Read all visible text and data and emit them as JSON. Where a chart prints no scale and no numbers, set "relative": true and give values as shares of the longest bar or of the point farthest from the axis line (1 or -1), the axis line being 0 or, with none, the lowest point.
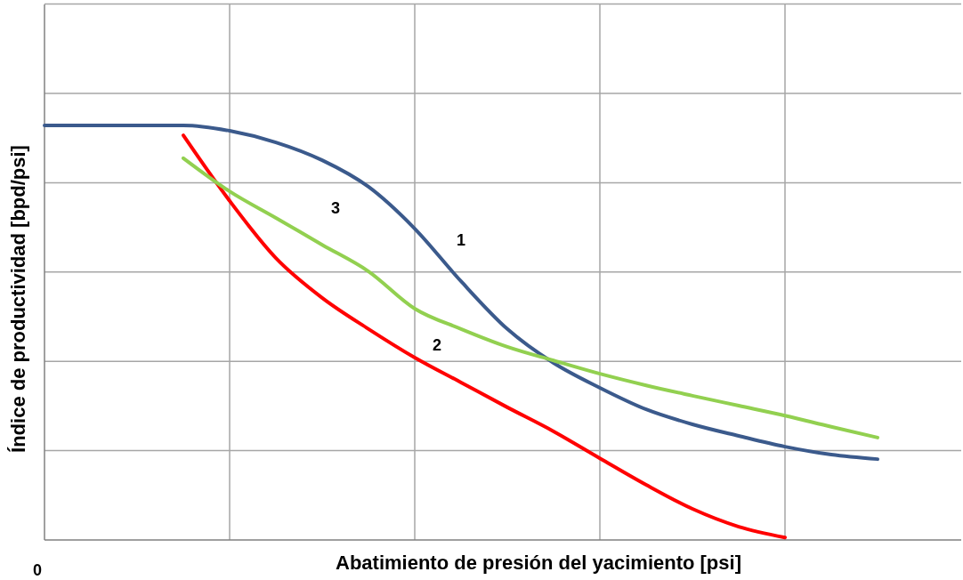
{
  "chart_data": {
    "type": "line",
    "relative": true,
    "xlabel": "Abatimiento de presión del yacimiento [psi]",
    "ylabel": "Índice de productividad  [bpd/psi]",
    "annotations": [
      "0"
    ],
    "grid": true,
    "categories": [
      null,
      null,
      null,
      null,
      null,
      null,
      null,
      null,
      null,
      null,
      null,
      null,
      null,
      null,
      null,
      null,
      null,
      null,
      null,
      null
    ],
    "series": [
      {
        "name": "1",
        "color": "#3b5a8c",
        "values": [
          1.0,
          1.0,
          1.0,
          1.0,
          0.987,
          0.959,
          0.916,
          0.852,
          0.751,
          0.624,
          0.509,
          0.427,
          0.367,
          0.315,
          0.279,
          0.251,
          0.225,
          0.206,
          0.195,
          null
        ]
      },
      {
        "name": "2",
        "color": "#ff0000",
        "values": [
          null,
          null,
          null,
          0.976,
          0.818,
          0.68,
          0.584,
          0.509,
          0.44,
          0.38,
          0.32,
          0.262,
          0.197,
          0.133,
          0.075,
          0.032,
          0.006,
          null,
          null,
          null
        ]
      },
      {
        "name": "3",
        "color": "#92d050",
        "values": [
          null,
          null,
          null,
          0.921,
          0.841,
          0.777,
          0.712,
          0.648,
          0.558,
          0.509,
          0.466,
          0.433,
          0.401,
          0.373,
          0.348,
          0.324,
          0.3,
          0.273,
          0.247,
          null
        ]
      }
    ]
  }
}
